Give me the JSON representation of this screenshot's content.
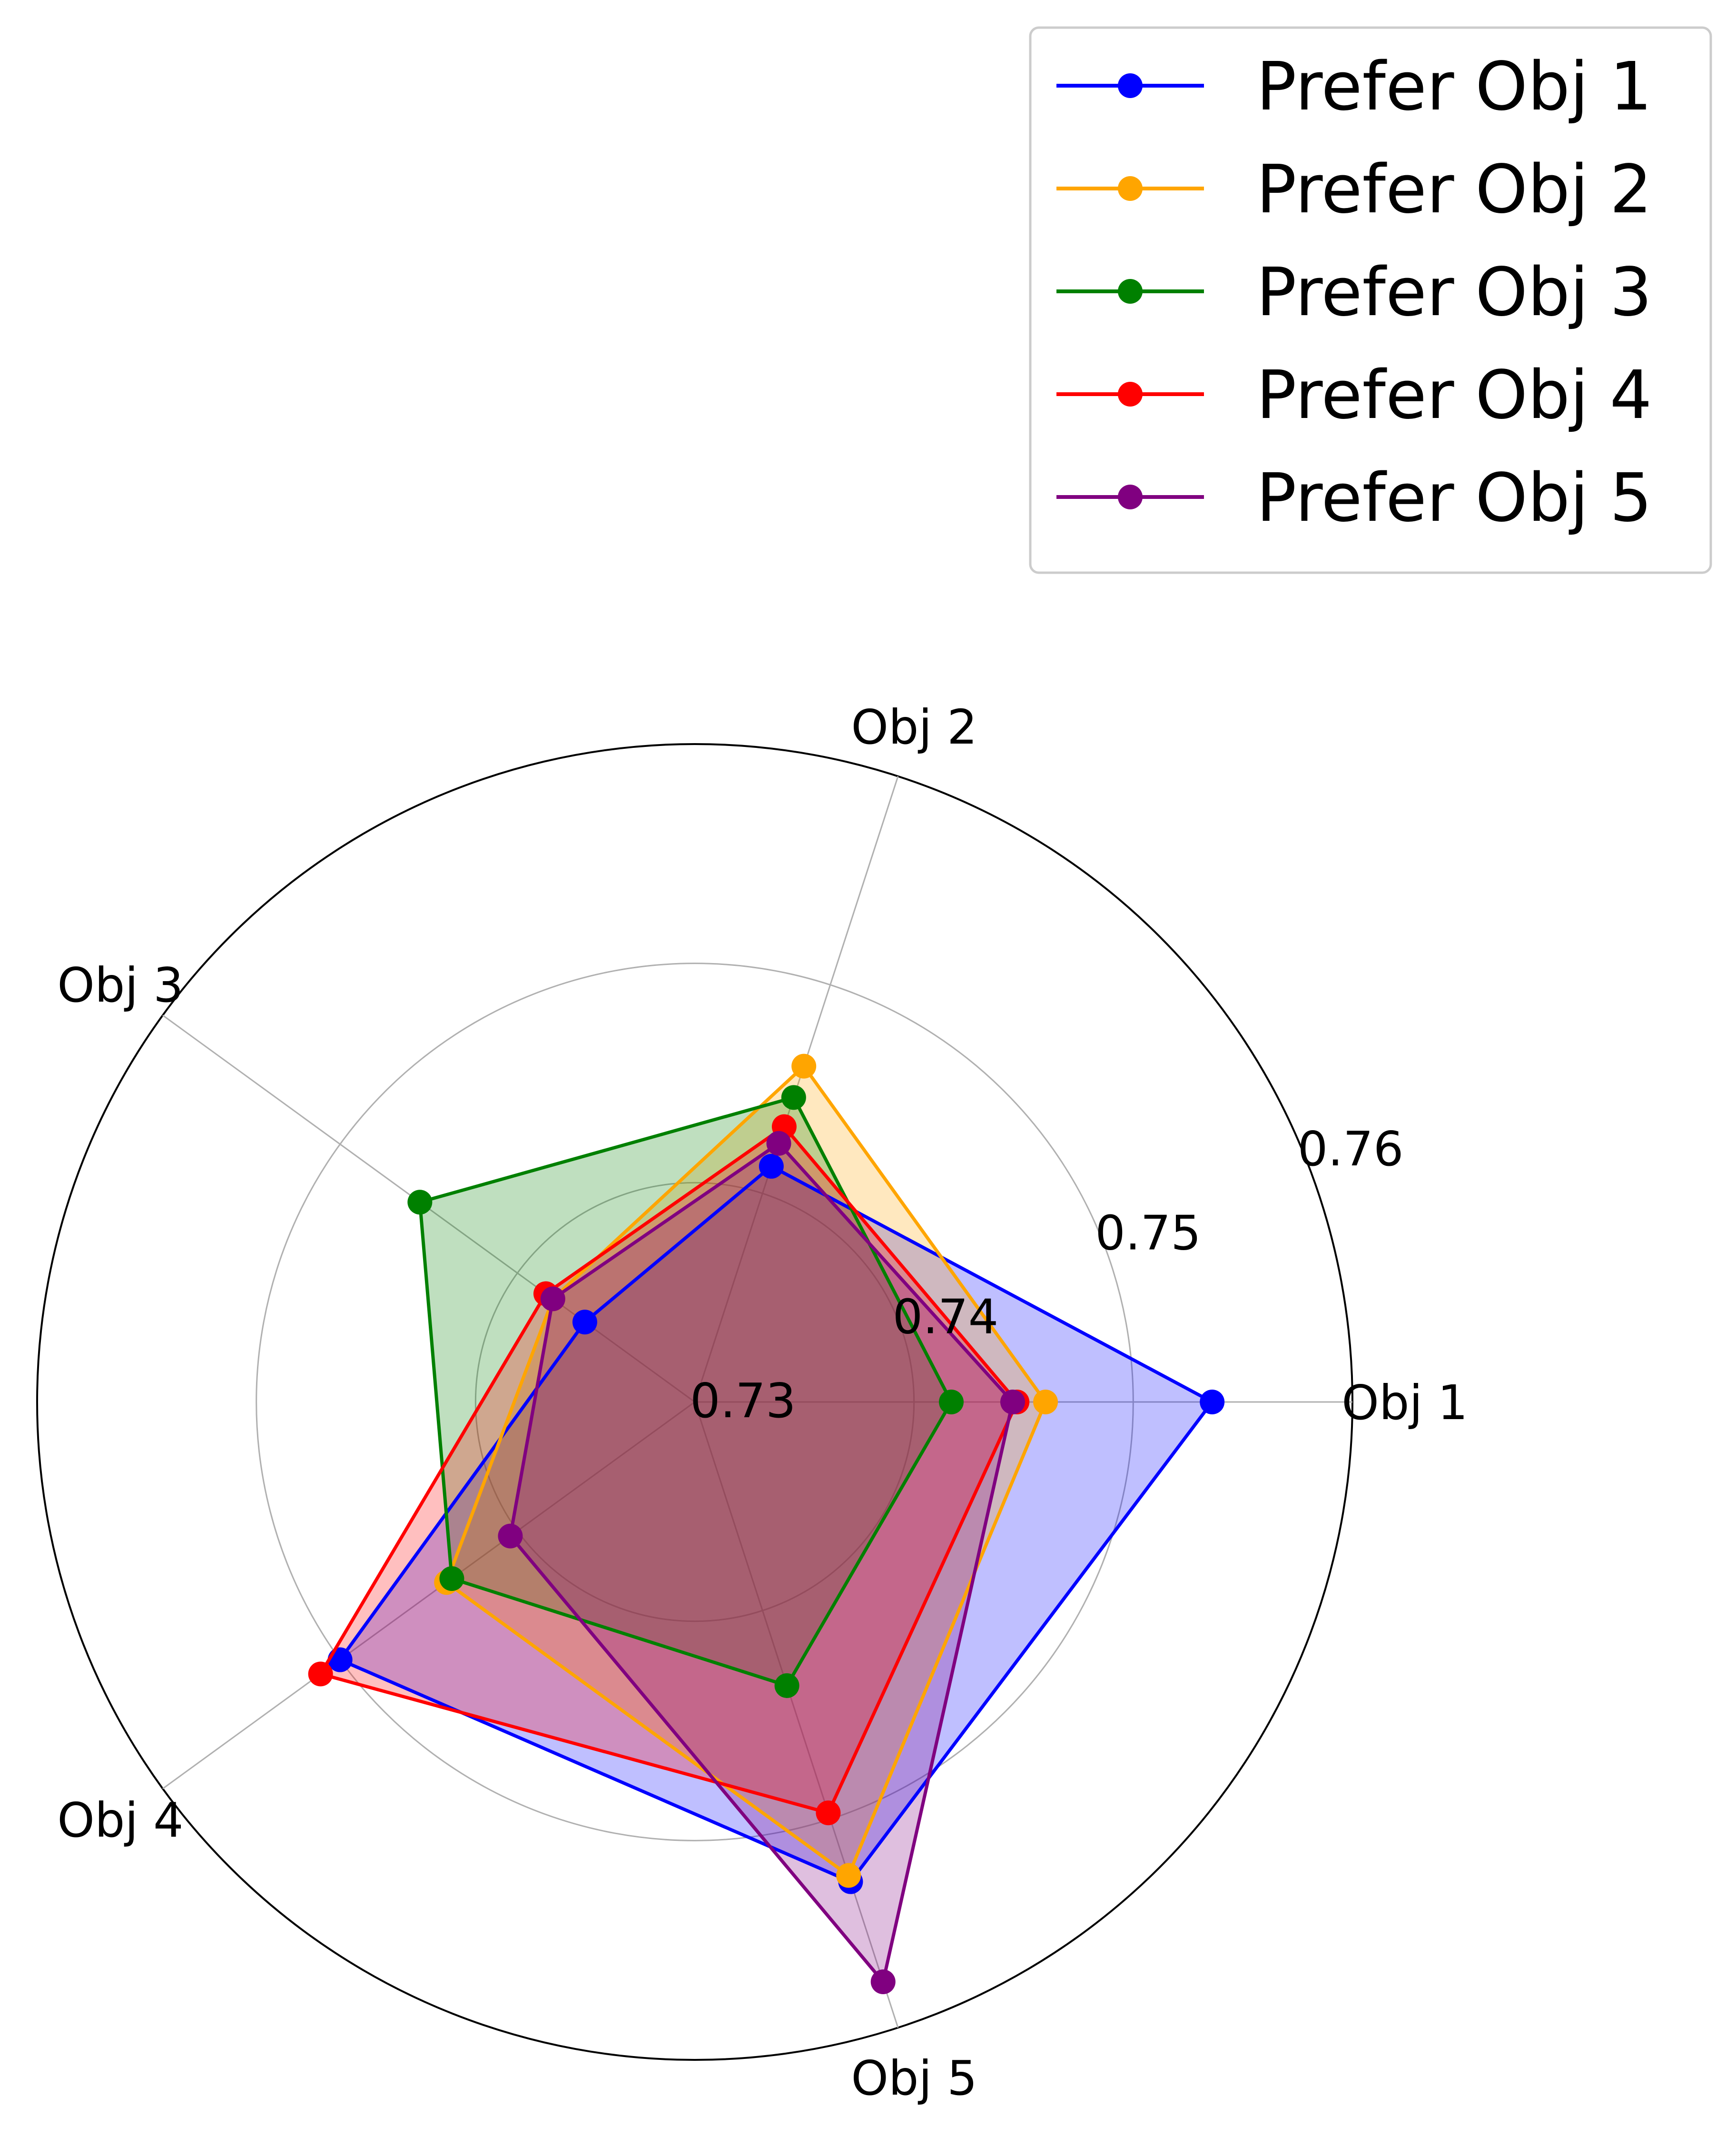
{
  "chart_data": {
    "type": "radar",
    "axes": [
      "Obj 1",
      "Obj 2",
      "Obj 3",
      "Obj 4",
      "Obj 5"
    ],
    "radial_range": [
      0.73,
      0.76
    ],
    "radial_ticks": [
      0.73,
      0.74,
      0.75,
      0.76
    ],
    "radial_tick_labels": [
      "0.73",
      "0.74",
      "0.75",
      "0.76"
    ],
    "grid": true,
    "legend_position": "top-right",
    "series": [
      {
        "name": "Prefer Obj 1",
        "color": "#0000ff",
        "values": [
          0.7536,
          0.7413,
          0.7362,
          0.75,
          0.753
        ]
      },
      {
        "name": "Prefer Obj 2",
        "color": "#ffa500",
        "values": [
          0.746,
          0.7461,
          0.738,
          0.744,
          0.7527
        ]
      },
      {
        "name": "Prefer Obj 3",
        "color": "#008000",
        "values": [
          0.7417,
          0.7446,
          0.7455,
          0.7437,
          0.7436
        ]
      },
      {
        "name": "Prefer Obj 4",
        "color": "#ff0000",
        "values": [
          0.7447,
          0.7432,
          0.7384,
          0.7511,
          0.7497
        ]
      },
      {
        "name": "Prefer Obj 5",
        "color": "#800080",
        "values": [
          0.7445,
          0.7424,
          0.738,
          0.7404,
          0.7578
        ]
      }
    ]
  }
}
